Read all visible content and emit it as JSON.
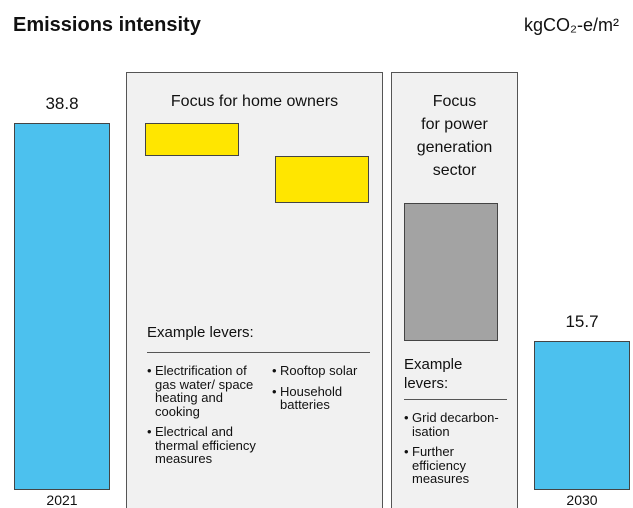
{
  "chart_data": {
    "type": "waterfall",
    "title": "Emissions intensity",
    "unit": "kgCO₂-e/m²",
    "categories": [
      "2021",
      null,
      null,
      null,
      "2030"
    ],
    "values": [
      38.8,
      -3.5,
      -5.0,
      -14.6,
      15.7
    ],
    "kinds": [
      "total",
      "delta",
      "delta",
      "delta",
      "total"
    ],
    "colors": [
      "#4cc1ee",
      "#ffe600",
      "#ffe600",
      "#a3a3a3",
      "#4cc1ee"
    ],
    "panels": [
      {
        "title": "Focus for home owners",
        "levers_title": "Example levers:",
        "columns": [
          [
            "Electrification of gas water/ space heating and cooking",
            "Electrical and thermal efficiency measures"
          ],
          [
            "Rooftop solar",
            "Household batteries"
          ]
        ]
      },
      {
        "title_lines": [
          "Focus",
          "for power",
          "generation",
          "sector"
        ],
        "levers_title": "Example levers:",
        "columns": [
          [
            "Grid decarbon-isation",
            "Further efficiency measures"
          ]
        ]
      }
    ]
  }
}
